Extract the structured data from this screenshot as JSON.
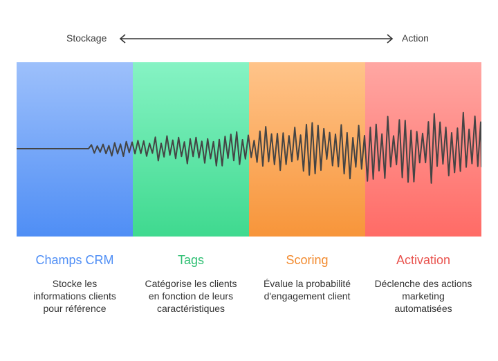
{
  "axis": {
    "start_label": "Stockage",
    "end_label": "Action"
  },
  "stages": [
    {
      "title": "Champs CRM",
      "description": "Stocke les informations clients pour référence",
      "color": "#4f8ef5"
    },
    {
      "title": "Tags",
      "description": "Catégorise les clients en fonction de leurs caractéristiques",
      "color": "#2fbf73"
    },
    {
      "title": "Scoring",
      "description": "Évalue la probabilité d'engagement client",
      "color": "#f28a2e"
    },
    {
      "title": "Activation",
      "description": "Déclenche des actions marketing automatisées",
      "color": "#e9544f"
    }
  ],
  "wave_color": "#444444",
  "arrow_color": "#333333"
}
